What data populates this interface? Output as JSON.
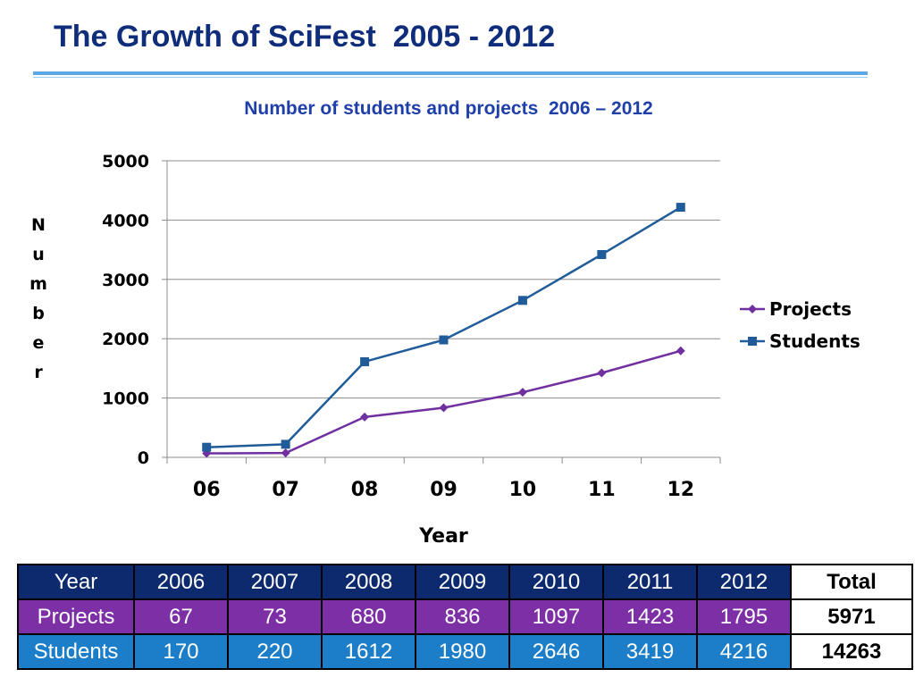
{
  "slide_title": "The Growth of SciFest  2005 - 2012",
  "colors": {
    "title": "#0f2d7a",
    "chart_title": "#1f3fa8",
    "projects": "#7030a0",
    "students": "#1f5c99",
    "table_header": "#0d2a6e",
    "table_projects": "#7d2fa5",
    "table_students": "#1c7ec8"
  },
  "chart_data": {
    "type": "line",
    "title": "Number of students and projects  2006 – 2012",
    "xlabel": "Year",
    "ylabel": "Number",
    "categories": [
      "06",
      "07",
      "08",
      "09",
      "10",
      "11",
      "12"
    ],
    "ylim": [
      0,
      5000
    ],
    "yticks": [
      "0",
      "1000",
      "2000",
      "3000",
      "4000",
      "5000"
    ],
    "grid": true,
    "legend_position": "right",
    "series": [
      {
        "name": "Projects",
        "values": [
          67,
          73,
          680,
          836,
          1097,
          1423,
          1795
        ],
        "marker": "diamond"
      },
      {
        "name": "Students",
        "values": [
          170,
          220,
          1612,
          1980,
          2646,
          3419,
          4216
        ],
        "marker": "square"
      }
    ]
  },
  "table": {
    "header": [
      "Year",
      "2006",
      "2007",
      "2008",
      "2009",
      "2010",
      "2011",
      "2012",
      "Total"
    ],
    "rows": [
      [
        "Projects",
        "67",
        "73",
        "680",
        "836",
        "1097",
        "1423",
        "1795",
        "5971"
      ],
      [
        "Students",
        "170",
        "220",
        "1612",
        "1980",
        "2646",
        "3419",
        "4216",
        "14263"
      ]
    ]
  }
}
